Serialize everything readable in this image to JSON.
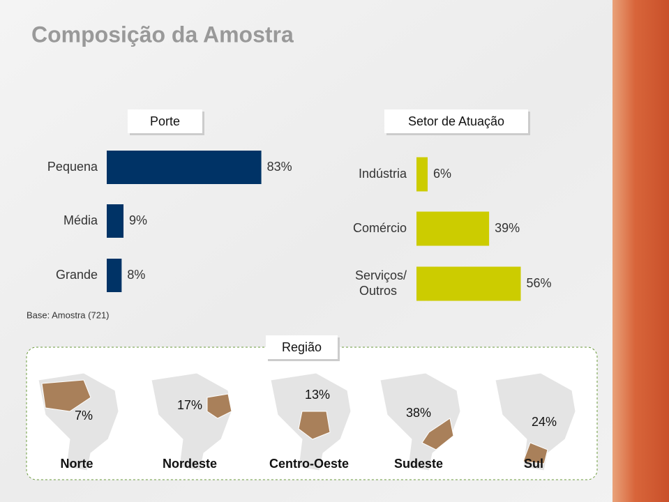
{
  "title": "Composição da Amostra",
  "note": "Base: Amostra (721)",
  "chart_data": [
    {
      "type": "bar",
      "orientation": "horizontal",
      "title": "Porte",
      "categories": [
        "Pequena",
        "Média",
        "Grande"
      ],
      "values": [
        83,
        9,
        8
      ],
      "value_labels": [
        "83%",
        "9%",
        "8%"
      ],
      "color": "#003366",
      "xlim": [
        0,
        100
      ]
    },
    {
      "type": "bar",
      "orientation": "horizontal",
      "title": "Setor de Atuação",
      "categories": [
        "Indústria",
        "Comércio",
        "Serviços/ Outros"
      ],
      "values": [
        6,
        39,
        56
      ],
      "value_labels": [
        "6%",
        "39%",
        "56%"
      ],
      "color": "#cccc00",
      "xlim": [
        0,
        100
      ]
    },
    {
      "type": "map",
      "title": "Região",
      "categories": [
        "Norte",
        "Nordeste",
        "Centro-Oeste",
        "Sudeste",
        "Sul"
      ],
      "values": [
        7,
        17,
        13,
        38,
        24
      ],
      "value_labels": [
        "7%",
        "17%",
        "13%",
        "38%",
        "24%"
      ],
      "color": "#a9805a"
    }
  ]
}
